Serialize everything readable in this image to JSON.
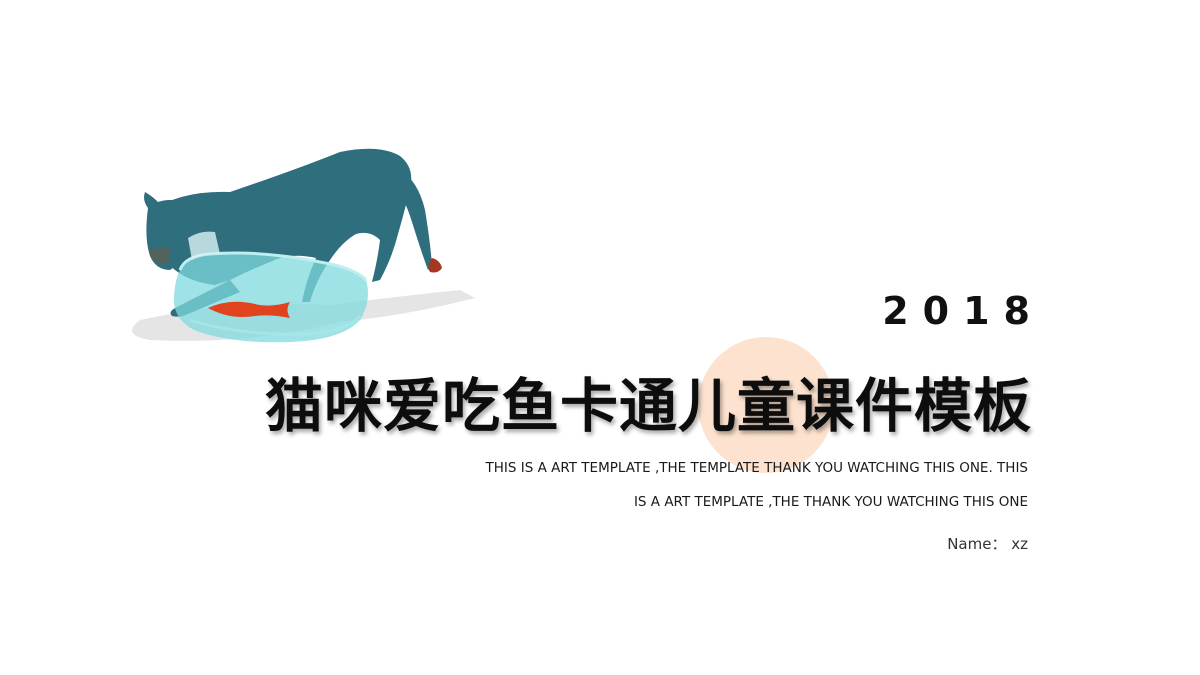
{
  "slide": {
    "year": "2018",
    "title": "猫咪爱吃鱼卡通儿童课件模板",
    "subtitle_line1": "THIS IS A ART TEMPLATE ,THE TEMPLATE THANK YOU WATCHING THIS ONE. THIS",
    "subtitle_line2": "IS A ART TEMPLATE ,THE THANK YOU WATCHING THIS ONE",
    "name_label": "Name：",
    "name_value": "xz"
  },
  "colors": {
    "accent_circle": "#fde3cf",
    "cat_body": "#2f6e7c",
    "fishbowl_water": "#7fd9dd",
    "goldfish": "#e0431d"
  },
  "icons": {
    "illustration": "cat-drinking-from-fishbowl-illustration"
  }
}
